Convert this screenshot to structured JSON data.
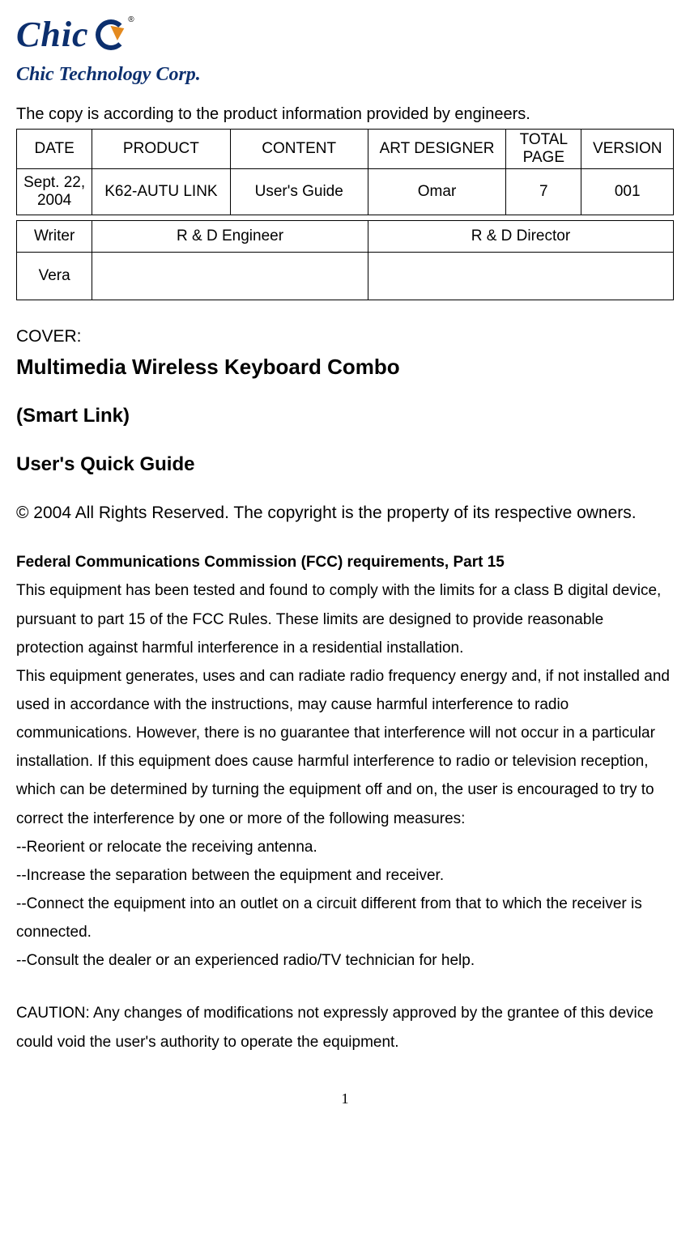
{
  "logo": {
    "word": "Chic",
    "subline": "Chic Technology Corp.",
    "reg_mark": "®"
  },
  "intro": "The copy is according to the product information provided by engineers.",
  "table1": {
    "headers": [
      "DATE",
      "PRODUCT",
      "CONTENT",
      "ART DESIGNER",
      "TOTAL PAGE",
      "VERSION"
    ],
    "row": [
      "Sept. 22, 2004",
      "K62-AUTU LINK",
      "User's Guide",
      "Omar",
      "7",
      "001"
    ]
  },
  "table2": {
    "headers": [
      "Writer",
      "R & D Engineer",
      "R & D Director"
    ],
    "row": [
      "Vera",
      "",
      ""
    ]
  },
  "cover": {
    "label": "COVER:",
    "title1": "Multimedia Wireless Keyboard Combo",
    "title2": "(Smart Link)",
    "title3": "User's Quick Guide"
  },
  "copyright": "© 2004 All Rights Reserved.  The copyright is the property of its respective owners.",
  "fcc_heading": "Federal Communications Commission (FCC) requirements, Part 15",
  "fcc_body": "This equipment has been tested and found to comply with the limits for a class B digital device, pursuant to part 15 of the FCC Rules.  These limits are designed to provide reasonable protection against harmful interference in a residential installation.\nThis equipment generates, uses and can radiate radio frequency energy and, if not installed and used in accordance with the instructions, may cause harmful interference to radio communications.  However, there is no guarantee that interference will not occur in a particular installation.  If this equipment does cause harmful interference to radio or television reception, which can be determined by turning the equipment off and on, the user is encouraged to try to correct the interference by one or more of the following measures:\n--Reorient or relocate the receiving antenna.\n--Increase the separation between the equipment and receiver.\n--Connect the equipment into an outlet on a circuit different from that to which the receiver is connected.\n--Consult the dealer or an experienced radio/TV technician for help.",
  "caution": "CAUTION: Any changes of modifications not expressly approved by the grantee of this device could void the user's authority to operate the equipment.",
  "page_number": "1"
}
